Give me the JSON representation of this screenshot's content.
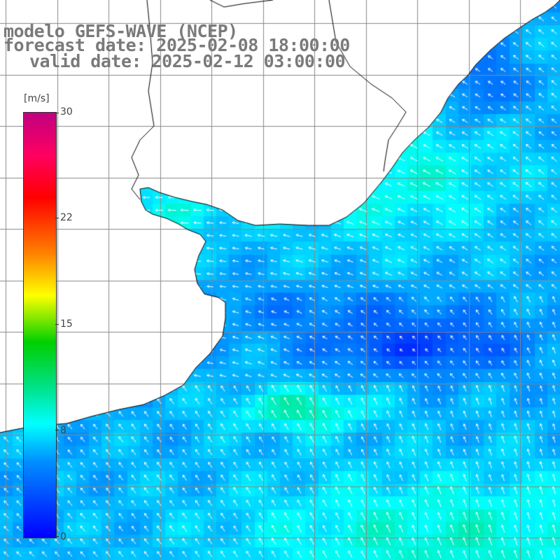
{
  "header": {
    "model": "modelo GEFS-WAVE (NCEP)",
    "forecast": "forecast date: 2025-02-08 18:00:00",
    "valid": "valid date: 2025-02-12 03:00:00"
  },
  "colorbar": {
    "unit": "[m/s]",
    "min": 0,
    "max": 30,
    "ticks": [
      "30",
      "22",
      "15",
      "8",
      "0"
    ],
    "colors": [
      "#0000ff",
      "#0090ff",
      "#00ffff",
      "#00e080",
      "#00d000",
      "#ffff00",
      "#ff8000",
      "#ff0000",
      "#c00080"
    ]
  },
  "map": {
    "variable": "wind speed with direction arrows",
    "land_color": "#ffffff",
    "grid_color": "#888888",
    "coast_color": "#000000",
    "arrow_color": "#ffffff"
  }
}
